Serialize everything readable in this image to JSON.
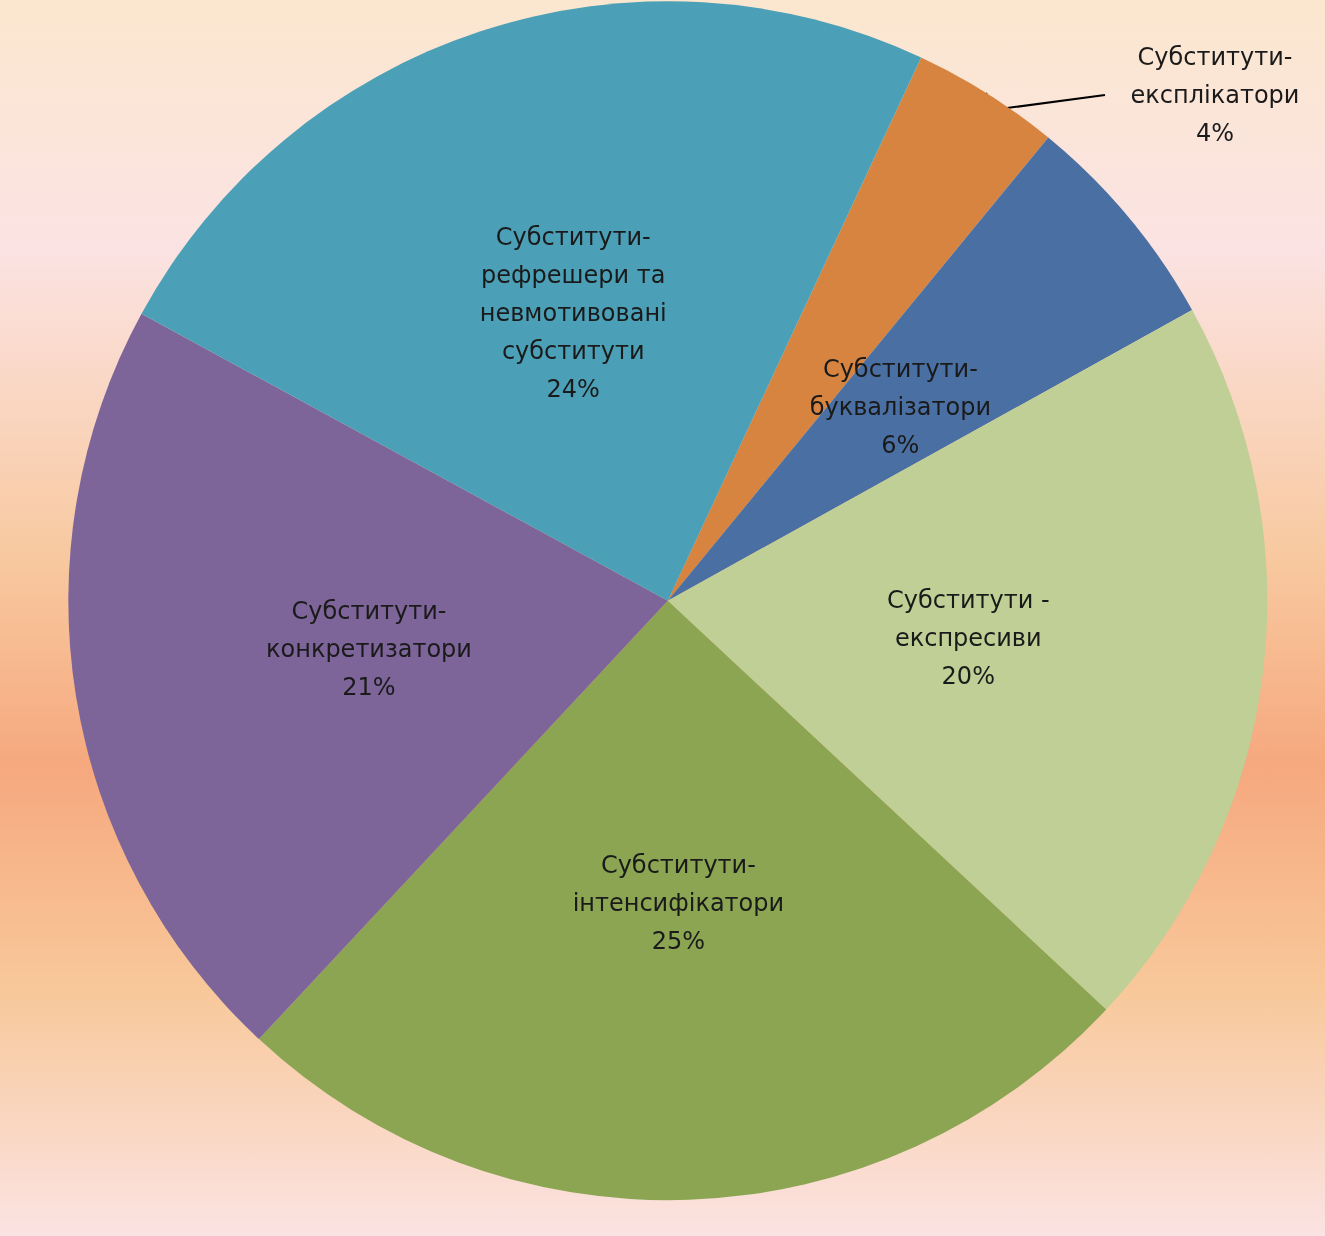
{
  "chart_data": {
    "type": "pie",
    "categories": [
      "Субститути-\nексплікатори",
      "Субститути-\nбуквалізатори",
      "Субститути -\nекспресиви",
      "Субститути-\nінтенсифікатори",
      "Субститути-\nконкретизатори",
      "Субститути-\nрефрешери та\nневмотивовані\nсубститути"
    ],
    "values": [
      4,
      6,
      20,
      25,
      21,
      24
    ],
    "colors": [
      "#d6843f",
      "#4a6fa2",
      "#bfcf95",
      "#8ba552",
      "#7d6499",
      "#4ba0b7"
    ],
    "value_labels": [
      "4%",
      "6%",
      "20%",
      "25%",
      "21%",
      "24%"
    ],
    "legend": false
  }
}
